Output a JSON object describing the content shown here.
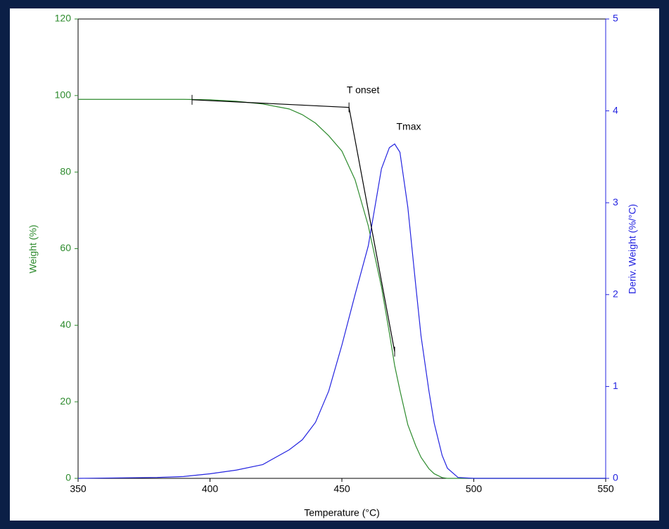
{
  "chart_data": {
    "type": "line",
    "x_label": "Temperature (°C)",
    "y_label": "Weight (%)",
    "y2_label": "Deriv. Weight (%/°C)",
    "x": [
      350,
      380,
      390,
      400,
      410,
      420,
      430,
      435,
      440,
      445,
      450,
      455,
      460,
      465,
      468,
      470,
      472,
      475,
      478,
      480,
      483,
      485,
      488,
      490,
      494,
      500,
      550
    ],
    "series": [
      {
        "color": "#2e8b2e",
        "axis": "y",
        "values": [
          99,
          99,
          99,
          98.9,
          98.5,
          97.8,
          96.5,
          95,
          92.8,
          89.5,
          85.5,
          78,
          66,
          50,
          38,
          29.5,
          23,
          14,
          8.5,
          5.5,
          2.5,
          1.2,
          0.2,
          0,
          0,
          0,
          0
        ]
      },
      {
        "color": "#2424e0",
        "axis": "y2",
        "values": [
          0,
          0.01,
          0.02,
          0.05,
          0.09,
          0.15,
          0.31,
          0.42,
          0.61,
          0.95,
          1.45,
          2.0,
          2.53,
          3.37,
          3.6,
          3.64,
          3.55,
          2.95,
          2.1,
          1.55,
          0.95,
          0.6,
          0.25,
          0.11,
          0.01,
          0,
          0
        ]
      },
      {
        "color": "#000000",
        "axis": "y",
        "x": [
          393.2,
          452.7,
          470
        ],
        "values": [
          98.9,
          96.9,
          33.1
        ]
      }
    ],
    "annotations": [
      {
        "text": "T onset",
        "x": 452.7,
        "y": 96.9,
        "axis": "y"
      },
      {
        "text": "Tmax",
        "x": 470,
        "y": 3.64,
        "axis": "y2"
      }
    ],
    "xlim": [
      350,
      550
    ],
    "xticks": [
      350,
      400,
      450,
      500,
      550
    ],
    "ylim": [
      0,
      120
    ],
    "yticks": [
      0,
      20,
      40,
      60,
      80,
      100,
      120
    ],
    "y2lim": [
      0,
      5
    ],
    "y2ticks": [
      0,
      1,
      2,
      3,
      4,
      5
    ],
    "y_color": "#2e8b2e",
    "y2_color": "#2424e0"
  }
}
